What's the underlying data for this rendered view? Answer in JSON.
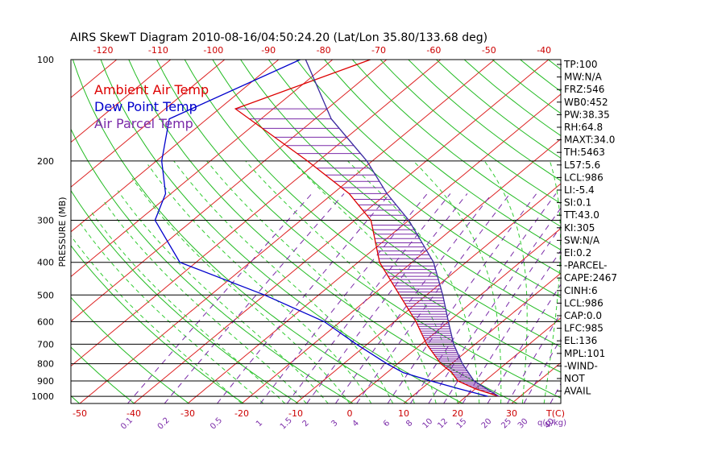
{
  "chart_data": {
    "type": "line",
    "title": "AIRS SkewT Diagram 2010-08-16/04:50:24.20 (Lat/Lon 35.80/133.68 deg)",
    "ylabel": "PRESSURE (MB)",
    "pressure_ticks": [
      {
        "p": 100,
        "label": "100"
      },
      {
        "p": 200,
        "label": "200"
      },
      {
        "p": 300,
        "label": "300"
      },
      {
        "p": 400,
        "label": "400"
      },
      {
        "p": 500,
        "label": "500"
      },
      {
        "p": 600,
        "label": "600"
      },
      {
        "p": 700,
        "label": "700"
      },
      {
        "p": 800,
        "label": "800"
      },
      {
        "p": 900,
        "label": "900"
      },
      {
        "p": 1000,
        "label": "1000"
      }
    ],
    "top_temp_ticks": [
      {
        "t": -120,
        "label": "-120"
      },
      {
        "t": -110,
        "label": "-110"
      },
      {
        "t": -100,
        "label": "-100"
      },
      {
        "t": -90,
        "label": "-90"
      },
      {
        "t": -80,
        "label": "-80"
      },
      {
        "t": -70,
        "label": "-70"
      },
      {
        "t": -60,
        "label": "-60"
      },
      {
        "t": -50,
        "label": "-50"
      },
      {
        "t": -40,
        "label": "-40"
      }
    ],
    "bottom_temp_ticks": [
      {
        "t": -50,
        "label": "-50"
      },
      {
        "t": -40,
        "label": "-40"
      },
      {
        "t": -30,
        "label": "-30"
      },
      {
        "t": -20,
        "label": "-20"
      },
      {
        "t": -10,
        "label": "-10"
      },
      {
        "t": 0,
        "label": "0"
      },
      {
        "t": 10,
        "label": "10"
      },
      {
        "t": 20,
        "label": "20"
      },
      {
        "t": 30,
        "label": "30"
      }
    ],
    "temp_unit_label": "T(C)",
    "mixing_unit_label": "q(g/kg)",
    "mixing_ratio_labels": [
      "0.1",
      "0.2",
      "0.5",
      "1",
      "1.5",
      "2",
      "3",
      "4",
      "6",
      "8",
      "10",
      "12",
      "15",
      "20",
      "25",
      "30",
      "40"
    ],
    "legend": [
      {
        "label": "Ambient Air Temp",
        "color": "#dd0000"
      },
      {
        "label": "Dew Point Temp",
        "color": "#0000cc"
      },
      {
        "label": "Air Parcel Temp",
        "color": "#7a2aa8"
      }
    ],
    "series": [
      {
        "name": "Ambient Air Temp",
        "points": [
          [
            100,
            -73
          ],
          [
            140,
            -87
          ],
          [
            200,
            -62
          ],
          [
            250,
            -47
          ],
          [
            300,
            -37
          ],
          [
            400,
            -26
          ],
          [
            500,
            -15
          ],
          [
            600,
            -6
          ],
          [
            700,
            1
          ],
          [
            800,
            8
          ],
          [
            850,
            12
          ],
          [
            900,
            15
          ],
          [
            950,
            20
          ],
          [
            1000,
            26
          ]
        ]
      },
      {
        "name": "Dew Point Temp",
        "points": [
          [
            100,
            -86
          ],
          [
            150,
            -97
          ],
          [
            200,
            -89
          ],
          [
            250,
            -81
          ],
          [
            300,
            -77
          ],
          [
            400,
            -63
          ],
          [
            500,
            -40
          ],
          [
            600,
            -23
          ],
          [
            700,
            -12
          ],
          [
            800,
            -2
          ],
          [
            850,
            3
          ],
          [
            900,
            10
          ],
          [
            950,
            17
          ],
          [
            1000,
            24
          ]
        ]
      },
      {
        "name": "Air Parcel Temp",
        "points": [
          [
            100,
            -85
          ],
          [
            150,
            -67
          ],
          [
            200,
            -51
          ],
          [
            250,
            -40
          ],
          [
            300,
            -30
          ],
          [
            400,
            -16
          ],
          [
            500,
            -7
          ],
          [
            600,
            0
          ],
          [
            700,
            6
          ],
          [
            800,
            12
          ],
          [
            900,
            18
          ],
          [
            1000,
            26
          ]
        ]
      }
    ]
  },
  "indices": [
    "TP:100",
    "MW:N/A",
    "FRZ:546",
    "WB0:452",
    "PW:38.35",
    "RH:64.8",
    "MAXT:34.0",
    "TH:5463",
    "L57:5.6",
    "LCL:986",
    "LI:-5.4",
    "SI:0.1",
    "TT:43.0",
    "KI:305",
    "SW:N/A",
    "EI:0.2",
    "-PARCEL-",
    "CAPE:2467",
    "CINH:6",
    "LCL:986",
    "CAP:0.0",
    "LFC:985",
    "EL:136",
    "MPL:101",
    "-WIND-",
    "NOT",
    "AVAIL"
  ]
}
